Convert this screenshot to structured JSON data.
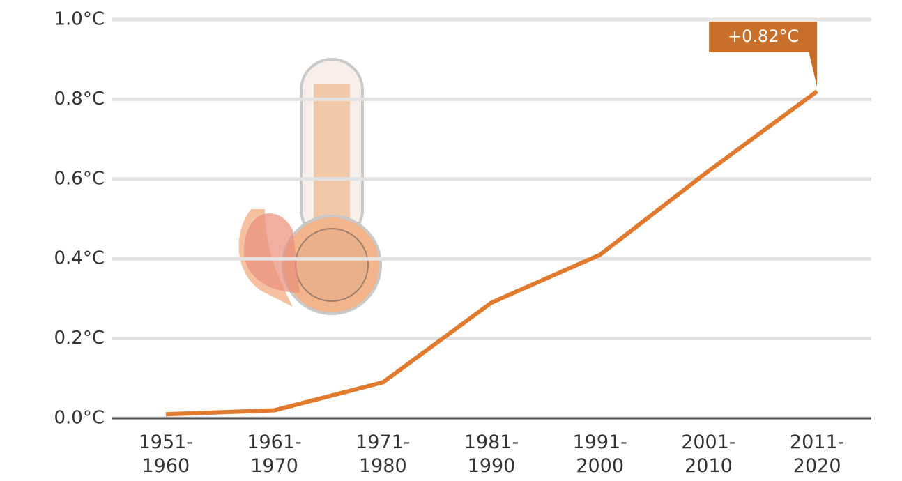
{
  "chart_data": {
    "type": "line",
    "categories": [
      "1951-1960",
      "1961-1970",
      "1971-1980",
      "1981-1990",
      "1991-2000",
      "2001-2010",
      "2011-2020"
    ],
    "values": [
      0.01,
      0.02,
      0.09,
      0.29,
      0.41,
      0.62,
      0.82
    ],
    "value_labels": [
      null,
      null,
      null,
      null,
      null,
      null,
      "+0.82°C"
    ],
    "color": "#e07a2e",
    "ylim": [
      0,
      1
    ],
    "yticks": [
      {
        "value": 0,
        "label": "0.0°C"
      },
      {
        "value": 0.2,
        "label": "0.2°C"
      },
      {
        "value": 0.4,
        "label": "0.4°C"
      },
      {
        "value": 0.6,
        "label": "0.6°C"
      },
      {
        "value": 0.8,
        "label": "0.8°C"
      },
      {
        "value": 1,
        "label": "1.0°C"
      }
    ],
    "grid": true
  }
}
